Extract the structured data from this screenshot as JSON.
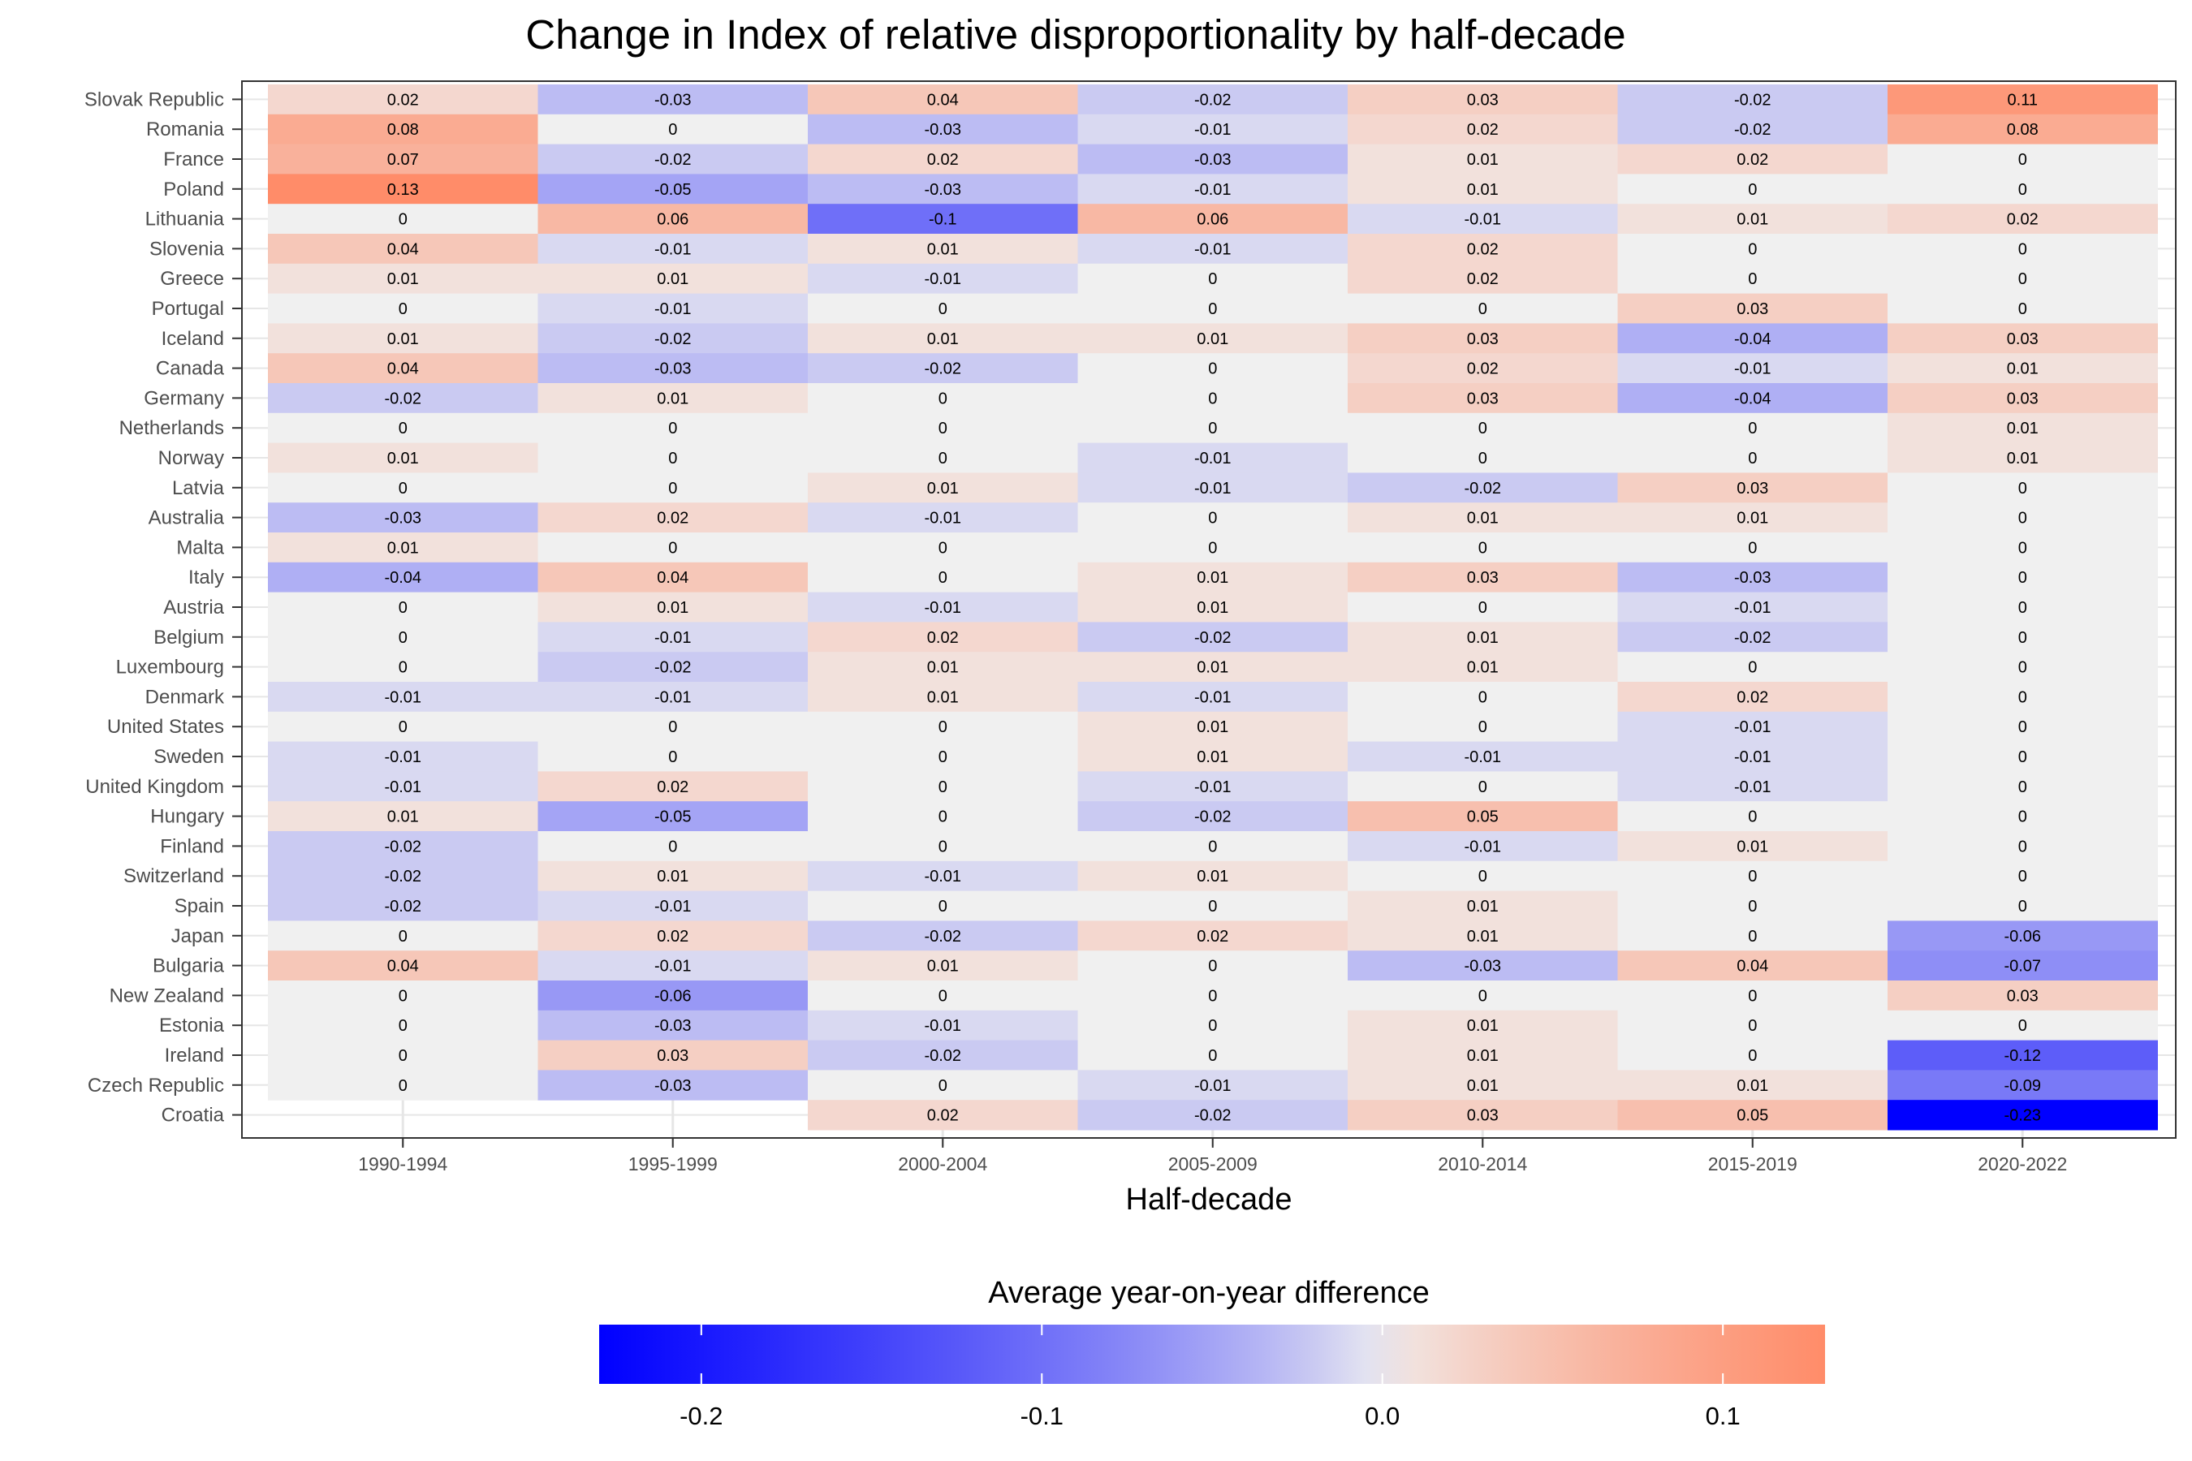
{
  "chart_data": {
    "type": "heatmap",
    "title": "Change in Index of relative disproportionality by half-decade",
    "xlabel": "Half-decade",
    "ylabel": "",
    "legend": {
      "title": "Average year-on-year difference",
      "position": "bottom",
      "ticks": [
        -0.2,
        -0.1,
        0.0,
        0.1
      ],
      "tick_labels": [
        "-0.2",
        "-0.1",
        "0.0",
        "0.1"
      ],
      "limits": [
        -0.23,
        0.13
      ],
      "low_color": "#0000ff",
      "mid_color": "#f0f0f0",
      "high_color": "#ff8c69"
    },
    "x": [
      "1990-1994",
      "1995-1999",
      "2000-2004",
      "2005-2009",
      "2010-2014",
      "2015-2019",
      "2020-2022"
    ],
    "y": [
      "Slovak Republic",
      "Romania",
      "France",
      "Poland",
      "Lithuania",
      "Slovenia",
      "Greece",
      "Portugal",
      "Iceland",
      "Canada",
      "Germany",
      "Netherlands",
      "Norway",
      "Latvia",
      "Australia",
      "Malta",
      "Italy",
      "Austria",
      "Belgium",
      "Luxembourg",
      "Denmark",
      "United States",
      "Sweden",
      "United Kingdom",
      "Hungary",
      "Finland",
      "Switzerland",
      "Spain",
      "Japan",
      "Bulgaria",
      "New Zealand",
      "Estonia",
      "Ireland",
      "Czech Republic",
      "Croatia"
    ],
    "values": [
      [
        0.02,
        -0.03,
        0.04,
        -0.02,
        0.03,
        -0.02,
        0.11
      ],
      [
        0.08,
        0,
        -0.03,
        -0.01,
        0.02,
        -0.02,
        0.08
      ],
      [
        0.07,
        -0.02,
        0.02,
        -0.03,
        0.01,
        0.02,
        0
      ],
      [
        0.13,
        -0.05,
        -0.03,
        -0.01,
        0.01,
        0,
        0
      ],
      [
        0,
        0.06,
        -0.1,
        0.06,
        -0.01,
        0.01,
        0.02
      ],
      [
        0.04,
        -0.01,
        0.01,
        -0.01,
        0.02,
        0,
        0
      ],
      [
        0.01,
        0.01,
        -0.01,
        0,
        0.02,
        0,
        0
      ],
      [
        0,
        -0.01,
        0,
        0,
        0,
        0.03,
        0
      ],
      [
        0.01,
        -0.02,
        0.01,
        0.01,
        0.03,
        -0.04,
        0.03
      ],
      [
        0.04,
        -0.03,
        -0.02,
        0,
        0.02,
        -0.01,
        0.01
      ],
      [
        -0.02,
        0.01,
        0,
        0,
        0.03,
        -0.04,
        0.03
      ],
      [
        0,
        0,
        0,
        0,
        0,
        0,
        0.01
      ],
      [
        0.01,
        0,
        0,
        -0.01,
        0,
        0,
        0.01
      ],
      [
        0,
        0,
        0.01,
        -0.01,
        -0.02,
        0.03,
        0
      ],
      [
        -0.03,
        0.02,
        -0.01,
        0,
        0.01,
        0.01,
        0
      ],
      [
        0.01,
        0,
        0,
        0,
        0,
        0,
        0
      ],
      [
        -0.04,
        0.04,
        0,
        0.01,
        0.03,
        -0.03,
        0
      ],
      [
        0,
        0.01,
        -0.01,
        0.01,
        0,
        -0.01,
        0
      ],
      [
        0,
        -0.01,
        0.02,
        -0.02,
        0.01,
        -0.02,
        0
      ],
      [
        0,
        -0.02,
        0.01,
        0.01,
        0.01,
        0,
        0
      ],
      [
        -0.01,
        -0.01,
        0.01,
        -0.01,
        0,
        0.02,
        0
      ],
      [
        0,
        0,
        0,
        0.01,
        0,
        -0.01,
        0
      ],
      [
        -0.01,
        0,
        0,
        0.01,
        -0.01,
        -0.01,
        0
      ],
      [
        -0.01,
        0.02,
        0,
        -0.01,
        0,
        -0.01,
        0
      ],
      [
        0.01,
        -0.05,
        0,
        -0.02,
        0.05,
        0,
        0
      ],
      [
        -0.02,
        0,
        0,
        0,
        -0.01,
        0.01,
        0
      ],
      [
        -0.02,
        0.01,
        -0.01,
        0.01,
        0,
        0,
        0
      ],
      [
        -0.02,
        -0.01,
        0,
        0,
        0.01,
        0,
        0
      ],
      [
        0,
        0.02,
        -0.02,
        0.02,
        0.01,
        0,
        -0.06
      ],
      [
        0.04,
        -0.01,
        0.01,
        0,
        -0.03,
        0.04,
        -0.07
      ],
      [
        0,
        -0.06,
        0,
        0,
        0,
        0,
        0.03
      ],
      [
        0,
        -0.03,
        -0.01,
        0,
        0.01,
        0,
        0
      ],
      [
        0,
        0.03,
        -0.02,
        0,
        0.01,
        0,
        -0.12
      ],
      [
        0,
        -0.03,
        0,
        -0.01,
        0.01,
        0.01,
        -0.09
      ],
      [
        null,
        null,
        0.02,
        -0.02,
        0.03,
        0.05,
        -0.23
      ]
    ]
  }
}
